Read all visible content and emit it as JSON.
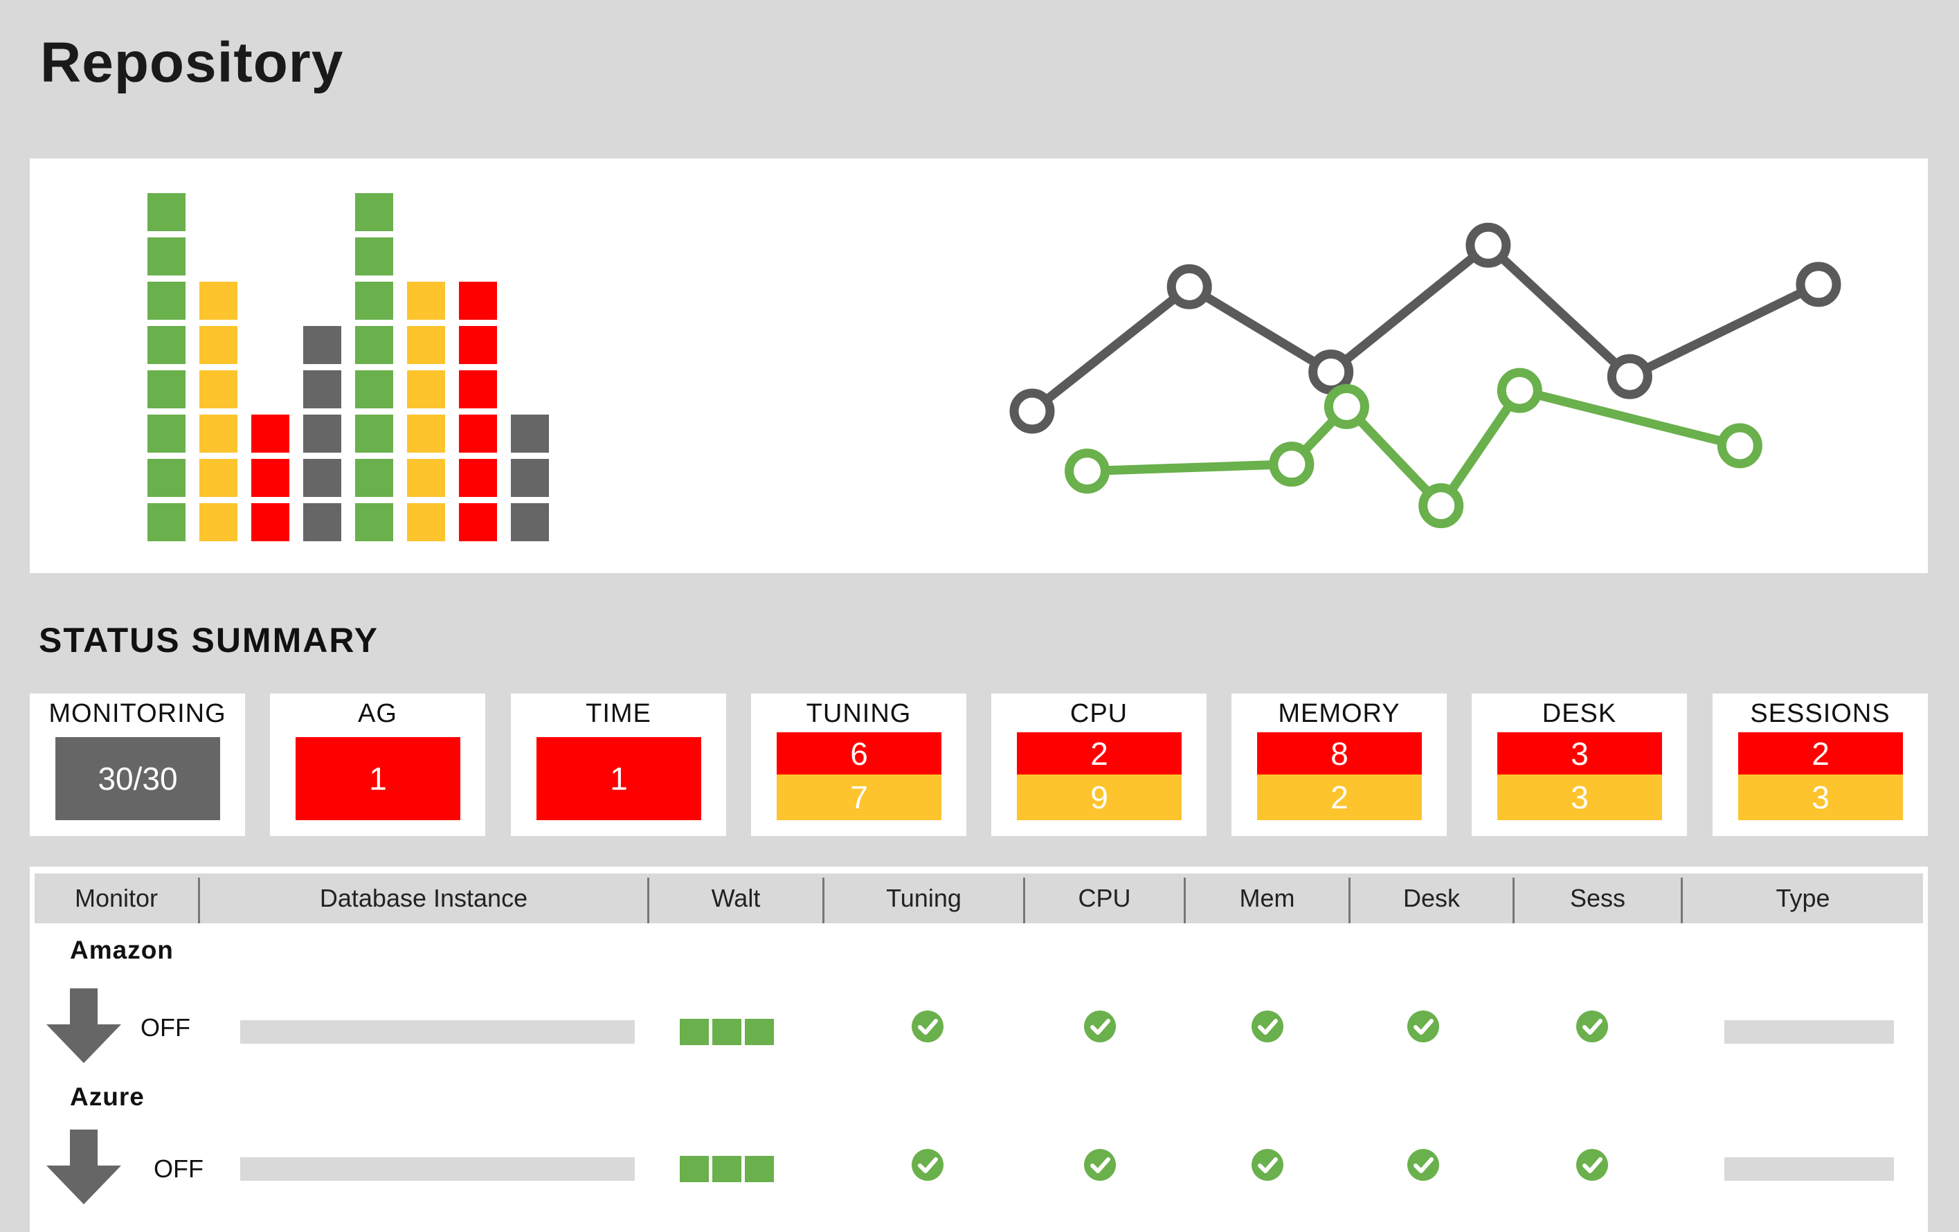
{
  "page": {
    "title": "Repository"
  },
  "colors": {
    "green": "#6ab04c",
    "yellow": "#fdc42d",
    "red": "#ff0000",
    "gray": "#666666",
    "line_gray": "#5a5a5a"
  },
  "bar_chart": {
    "type": "bar",
    "stack_heights": [
      8,
      6,
      3,
      5,
      8,
      6,
      6,
      3
    ],
    "stack_colors": [
      "#6ab04c",
      "#fdc42d",
      "#ff0000",
      "#666666",
      "#6ab04c",
      "#fdc42d",
      "#ff0000",
      "#666666"
    ]
  },
  "line_chart": {
    "type": "line",
    "series": [
      {
        "color": "#5a5a5a",
        "values": [
          [
            0.0,
            0.82
          ],
          [
            0.2,
            0.28
          ],
          [
            0.38,
            0.65
          ],
          [
            0.58,
            0.1
          ],
          [
            0.76,
            0.67
          ],
          [
            1.0,
            0.27
          ]
        ]
      },
      {
        "color": "#6ab04c",
        "values": [
          [
            0.07,
            1.08
          ],
          [
            0.33,
            1.05
          ],
          [
            0.4,
            0.8
          ],
          [
            0.52,
            1.23
          ],
          [
            0.62,
            0.73
          ],
          [
            0.9,
            0.97
          ]
        ]
      }
    ]
  },
  "status_summary": {
    "title": "STATUS SUMMARY",
    "cards": [
      {
        "label": "MONITORING",
        "single": "30/30",
        "single_color": "#666666"
      },
      {
        "label": "AG",
        "single": "1",
        "single_color": "#ff0000"
      },
      {
        "label": "TIME",
        "single": "1",
        "single_color": "#ff0000"
      },
      {
        "label": "TUNING",
        "red": "6",
        "yellow": "7"
      },
      {
        "label": "CPU",
        "red": "2",
        "yellow": "9"
      },
      {
        "label": "MEMORY",
        "red": "8",
        "yellow": "2"
      },
      {
        "label": "DESK",
        "red": "3",
        "yellow": "3"
      },
      {
        "label": "SESSIONS",
        "red": "2",
        "yellow": "3"
      }
    ]
  },
  "table": {
    "columns": [
      "Monitor",
      "Database Instance",
      "Walt",
      "Tuning",
      "CPU",
      "Mem",
      "Desk",
      "Sess",
      "Type"
    ],
    "groups": [
      {
        "name": "Amazon",
        "state": "OFF"
      },
      {
        "name": "Azure",
        "state": "OFF"
      }
    ],
    "icons": {
      "status": "check-circle-icon",
      "monitor": "arrow-down-icon"
    }
  }
}
